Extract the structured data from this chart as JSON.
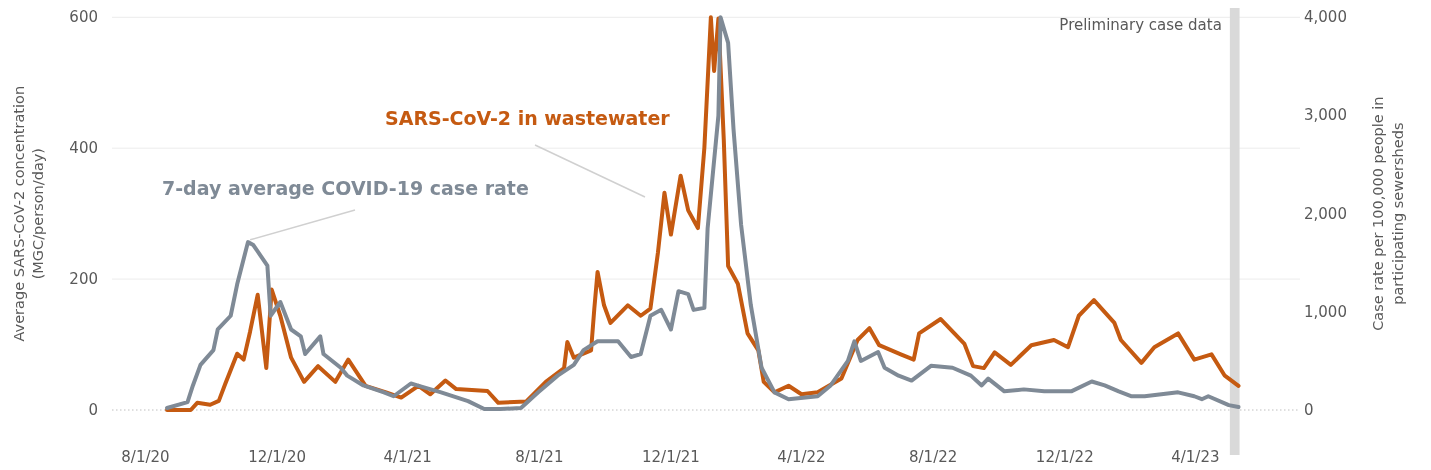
{
  "chart_data": {
    "type": "line",
    "ylabel": "Average SARS-CoV-2 concentration\n(MGC/person/day)",
    "y2label": "Case rate per 100,000 people in\nparticipating sewersheds",
    "xlim": [
      "2020-07-01",
      "2023-07-07"
    ],
    "xticks": [
      {
        "value": "2020-08-01",
        "label": "8/1/20"
      },
      {
        "value": "2020-12-01",
        "label": "12/1/20"
      },
      {
        "value": "2021-04-01",
        "label": "4/1/21"
      },
      {
        "value": "2021-08-01",
        "label": "8/1/21"
      },
      {
        "value": "2021-12-01",
        "label": "12/1/21"
      },
      {
        "value": "2022-04-01",
        "label": "4/1/22"
      },
      {
        "value": "2022-08-01",
        "label": "8/1/22"
      },
      {
        "value": "2022-12-01",
        "label": "12/1/22"
      },
      {
        "value": "2023-04-01",
        "label": "4/1/23"
      }
    ],
    "ylim": [
      0,
      600
    ],
    "yticks": [
      0,
      200,
      400,
      600
    ],
    "y2lim": [
      0,
      4000
    ],
    "y2ticks": [
      0,
      {
        "value": 1000,
        "label": "1,000"
      },
      {
        "value": 2000,
        "label": "2,000"
      },
      {
        "value": 3000,
        "label": "3,000"
      },
      {
        "value": 4000,
        "label": "4,000"
      }
    ],
    "grid": "y",
    "marker": "none",
    "line_style": "solid",
    "bands": [
      {
        "axis": "x",
        "from": "2023-05-03",
        "to": "2023-05-12",
        "label": "Preliminary case data",
        "color": "#d9d9d9"
      }
    ],
    "annotations": [
      "SARS-CoV-2 in wastewater",
      {
        "text": "7-day average COVID-19 case rate",
        "x": "2020-11-06",
        "y": 260
      }
    ],
    "series": [
      {
        "color": "#c55a11",
        "x": [
          "2020-08-21",
          "2020-09-12",
          "2020-09-18",
          "2020-09-30",
          "2020-10-08",
          "2020-10-14",
          "2020-10-25",
          "2020-10-31",
          "2020-11-06",
          "2020-11-13",
          "2020-11-21",
          "2020-11-26",
          "2020-12-04",
          "2020-12-14",
          "2020-12-26",
          "2021-01-08",
          "2021-01-24",
          "2021-02-05",
          "2021-02-21",
          "2021-03-12",
          "2021-03-26",
          "2021-04-11",
          "2021-04-22",
          "2021-05-06",
          "2021-05-16",
          "2021-06-14",
          "2021-06-24",
          "2021-07-20",
          "2021-08-07",
          "2021-08-24",
          "2021-08-27",
          "2021-09-02",
          "2021-09-18",
          "2021-09-21",
          "2021-09-24",
          "2021-09-30",
          "2021-10-06",
          "2021-10-22",
          "2021-11-03",
          "2021-11-12",
          "2021-11-19",
          "2021-11-25",
          "2021-12-01",
          "2021-12-10",
          "2021-12-17",
          "2021-12-26",
          "2022-01-01",
          "2022-01-07",
          "2022-01-10",
          "2022-01-14",
          "2022-01-19",
          "2022-01-23",
          "2022-02-01",
          "2022-02-10",
          "2022-02-20",
          "2022-02-25",
          "2022-03-07",
          "2022-03-20",
          "2022-04-01",
          "2022-04-16",
          "2022-05-08",
          "2022-05-23",
          "2022-06-03",
          "2022-06-12",
          "2022-07-02",
          "2022-07-14",
          "2022-07-19",
          "2022-08-08",
          "2022-08-30",
          "2022-09-07",
          "2022-09-17",
          "2022-09-27",
          "2022-10-12",
          "2022-10-31",
          "2022-11-21",
          "2022-12-04",
          "2022-12-14",
          "2022-12-28",
          "2023-01-16",
          "2023-01-22",
          "2023-02-10",
          "2023-02-22",
          "2023-03-16",
          "2023-03-31",
          "2023-04-16",
          "2023-04-28",
          "2023-05-11"
        ],
        "values": [
          0,
          0,
          11,
          8,
          14,
          40,
          86,
          77,
          120,
          176,
          64,
          184,
          144,
          80,
          43,
          67,
          43,
          77,
          37,
          27,
          19,
          37,
          24,
          45,
          32,
          29,
          11,
          13,
          43,
          64,
          104,
          80,
          91,
          155,
          211,
          160,
          133,
          160,
          144,
          155,
          241,
          332,
          268,
          358,
          305,
          278,
          401,
          600,
          518,
          598,
          412,
          220,
          193,
          117,
          91,
          43,
          27,
          37,
          24,
          27,
          48,
          107,
          125,
          99,
          85,
          77,
          117,
          139,
          101,
          67,
          64,
          88,
          69,
          99,
          107,
          96,
          144,
          168,
          133,
          107,
          72,
          96,
          117,
          77,
          85,
          53,
          37
        ]
      },
      {
        "color": "#7f8a96",
        "axis": "y2",
        "x": [
          "2020-08-21",
          "2020-09-09",
          "2020-09-14",
          "2020-09-21",
          "2020-10-03",
          "2020-10-07",
          "2020-10-19",
          "2020-10-25",
          "2020-11-04",
          "2020-11-09",
          "2020-11-22",
          "2020-11-25",
          "2020-12-04",
          "2020-12-14",
          "2020-12-23",
          "2020-12-27",
          "2021-01-10",
          "2021-01-13",
          "2021-01-29",
          "2021-02-04",
          "2021-02-19",
          "2021-03-10",
          "2021-03-19",
          "2021-04-04",
          "2021-04-13",
          "2021-05-02",
          "2021-05-27",
          "2021-06-11",
          "2021-06-26",
          "2021-07-15",
          "2021-07-31",
          "2021-08-18",
          "2021-09-02",
          "2021-09-11",
          "2021-09-24",
          "2021-10-13",
          "2021-10-25",
          "2021-11-03",
          "2021-11-12",
          "2021-11-22",
          "2021-12-01",
          "2021-12-08",
          "2021-12-17",
          "2021-12-22",
          "2022-01-01",
          "2022-01-04",
          "2022-01-14",
          "2022-01-16",
          "2022-01-23",
          "2022-01-28",
          "2022-02-04",
          "2022-02-13",
          "2022-02-23",
          "2022-03-07",
          "2022-03-20",
          "2022-04-16",
          "2022-04-28",
          "2022-05-14",
          "2022-05-20",
          "2022-05-26",
          "2022-06-11",
          "2022-06-17",
          "2022-06-30",
          "2022-07-12",
          "2022-07-30",
          "2022-08-19",
          "2022-09-05",
          "2022-09-15",
          "2022-09-21",
          "2022-10-06",
          "2022-10-24",
          "2022-11-12",
          "2022-12-07",
          "2022-12-26",
          "2023-01-07",
          "2023-01-20",
          "2023-02-01",
          "2023-02-13",
          "2023-03-16",
          "2023-03-31",
          "2023-04-07",
          "2023-04-13",
          "2023-05-02",
          "2023-05-11"
        ],
        "values": [
          20,
          80,
          250,
          460,
          610,
          820,
          960,
          1280,
          1710,
          1680,
          1470,
          960,
          1100,
          820,
          750,
          570,
          750,
          570,
          430,
          350,
          250,
          180,
          140,
          270,
          240,
          180,
          90,
          10,
          10,
          20,
          180,
          350,
          460,
          610,
          700,
          700,
          540,
          570,
          960,
          1020,
          820,
          1210,
          1180,
          1020,
          1040,
          1850,
          3000,
          4000,
          3740,
          2860,
          1890,
          1070,
          430,
          180,
          110,
          140,
          250,
          500,
          700,
          500,
          590,
          430,
          350,
          300,
          450,
          430,
          350,
          250,
          320,
          190,
          210,
          190,
          190,
          290,
          250,
          190,
          140,
          140,
          180,
          140,
          110,
          140,
          50,
          30
        ]
      }
    ]
  }
}
